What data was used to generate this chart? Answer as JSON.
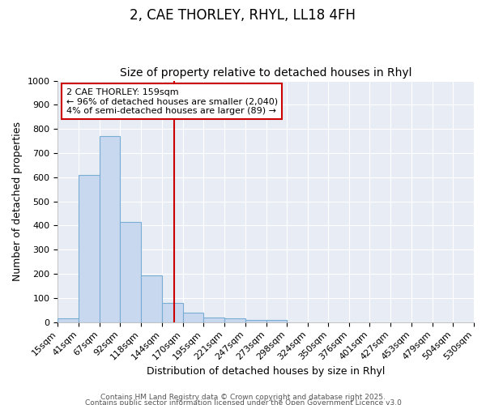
{
  "title1": "2, CAE THORLEY, RHYL, LL18 4FH",
  "title2": "Size of property relative to detached houses in Rhyl",
  "xlabel": "Distribution of detached houses by size in Rhyl",
  "ylabel": "Number of detached properties",
  "bin_edges": [
    15,
    41,
    67,
    92,
    118,
    144,
    170,
    195,
    221,
    247,
    273,
    298,
    324,
    350,
    376,
    401,
    427,
    453,
    479,
    504,
    530
  ],
  "bar_heights": [
    15,
    608,
    770,
    415,
    193,
    80,
    40,
    20,
    15,
    10,
    10,
    0,
    0,
    0,
    0,
    0,
    0,
    0,
    0,
    0
  ],
  "bar_color": "#c8d8ef",
  "bar_edge_color": "#7aadd4",
  "vline_x": 159,
  "vline_color": "#cc0000",
  "ylim": [
    0,
    1000
  ],
  "yticks": [
    0,
    100,
    200,
    300,
    400,
    500,
    600,
    700,
    800,
    900,
    1000
  ],
  "annotation_title": "2 CAE THORLEY: 159sqm",
  "annotation_line1": "← 96% of detached houses are smaller (2,040)",
  "annotation_line2": "4% of semi-detached houses are larger (89) →",
  "annotation_box_facecolor": "#ffffff",
  "annotation_box_edgecolor": "#cc0000",
  "fig_bg_color": "#ffffff",
  "plot_bg_color": "#e8edf5",
  "grid_color": "#ffffff",
  "footer1": "Contains HM Land Registry data © Crown copyright and database right 2025.",
  "footer2": "Contains public sector information licensed under the Open Government Licence v3.0",
  "title1_fontsize": 12,
  "title2_fontsize": 10,
  "axis_label_fontsize": 9,
  "tick_fontsize": 8,
  "annotation_fontsize": 8,
  "footer_fontsize": 6.5
}
